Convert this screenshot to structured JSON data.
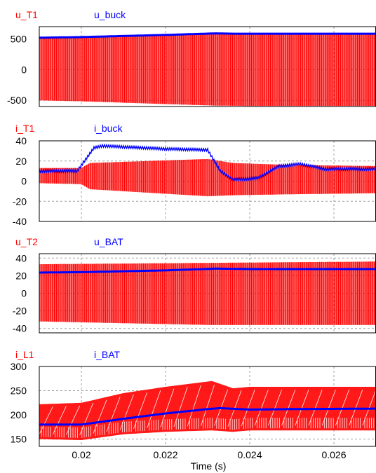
{
  "colors": {
    "red": "#ff0000",
    "blue": "#0000ff",
    "grid": "#a0a0a0"
  },
  "x_axis": {
    "label": "Time (s)",
    "range": [
      0.019,
      0.027
    ],
    "ticks": [
      0.02,
      0.022,
      0.024,
      0.026
    ],
    "tick_labels": [
      "0.02",
      "0.022",
      "0.024",
      "0.026"
    ]
  },
  "chart_data": [
    {
      "type": "line",
      "legend": [
        "u_T1",
        "u_buck"
      ],
      "ylim": [
        -600,
        700
      ],
      "yticks": [
        -500,
        0,
        500
      ],
      "ytick_labels": [
        "-500",
        "0",
        "500"
      ],
      "series": [
        {
          "name": "u_T1",
          "color": "#ff0000",
          "style": "switching",
          "upper": {
            "x": [
              0.019,
              0.02,
              0.022,
              0.0232,
              0.024,
              0.027
            ],
            "y": [
              520,
              530,
              565,
              590,
              590,
              590
            ]
          },
          "lower": {
            "x": [
              0.019,
              0.02,
              0.022,
              0.0232,
              0.024,
              0.027
            ],
            "y": [
              -500,
              -515,
              -560,
              -585,
              -590,
              -590
            ]
          }
        },
        {
          "name": "u_buck",
          "color": "#0000ff",
          "style": "line",
          "x": [
            0.019,
            0.02,
            0.022,
            0.0232,
            0.0236,
            0.027
          ],
          "y": [
            520,
            530,
            565,
            590,
            585,
            585
          ]
        }
      ]
    },
    {
      "type": "line",
      "legend": [
        "i_T1",
        "i_buck"
      ],
      "ylim": [
        -40,
        40
      ],
      "yticks": [
        -40,
        -20,
        0,
        20,
        40
      ],
      "ytick_labels": [
        "-40",
        "-20",
        "0",
        "20",
        "40"
      ],
      "series": [
        {
          "name": "i_T1",
          "color": "#ff0000",
          "style": "switching",
          "upper": {
            "x": [
              0.019,
              0.02,
              0.0202,
              0.023,
              0.0236,
              0.025,
              0.027
            ],
            "y": [
              13,
              13,
              18,
              22,
              18,
              16,
              15
            ]
          },
          "lower": {
            "x": [
              0.019,
              0.02,
              0.0202,
              0.023,
              0.0236,
              0.025,
              0.027
            ],
            "y": [
              -2,
              -3,
              -8,
              -15,
              -14,
              -13,
              -12
            ]
          }
        },
        {
          "name": "i_buck",
          "color": "#0000ff",
          "style": "ripple",
          "ripple": 2.5,
          "x": [
            0.019,
            0.0199,
            0.0203,
            0.0205,
            0.022,
            0.023,
            0.0233,
            0.0236,
            0.0242,
            0.0247,
            0.0252,
            0.0258,
            0.027
          ],
          "y": [
            10,
            10,
            33,
            35,
            32,
            31,
            10,
            1.5,
            3,
            15,
            17,
            12,
            12
          ]
        }
      ]
    },
    {
      "type": "line",
      "legend": [
        "u_T2",
        "u_BAT"
      ],
      "ylim": [
        -45,
        45
      ],
      "yticks": [
        -40,
        -20,
        0,
        20,
        40
      ],
      "ytick_labels": [
        "-40",
        "-20",
        "0",
        "20",
        "40"
      ],
      "series": [
        {
          "name": "u_T2",
          "color": "#ff0000",
          "style": "switching",
          "upper": {
            "x": [
              0.019,
              0.027
            ],
            "y": [
              33,
              36
            ]
          },
          "lower": {
            "x": [
              0.019,
              0.02,
              0.023,
              0.027
            ],
            "y": [
              -32,
              -33,
              -36,
              -36
            ]
          }
        },
        {
          "name": "u_BAT",
          "color": "#0000ff",
          "style": "line",
          "x": [
            0.019,
            0.02,
            0.022,
            0.0232,
            0.024,
            0.027
          ],
          "y": [
            23.5,
            24,
            26,
            28,
            27.5,
            27.5
          ]
        }
      ]
    },
    {
      "type": "line",
      "legend": [
        "i_L1",
        "i_BAT"
      ],
      "ylim": [
        135,
        300
      ],
      "yticks": [
        150,
        200,
        250,
        300
      ],
      "ytick_labels": [
        "150",
        "200",
        "250",
        "300"
      ],
      "series": [
        {
          "name": "i_L1",
          "color": "#ff0000",
          "style": "sawtooth",
          "period": 0.00032,
          "upper": {
            "x": [
              0.019,
              0.02,
              0.021,
              0.022,
              0.0231,
              0.0236,
              0.024,
              0.027
            ],
            "y": [
              222,
              225,
              245,
              258,
              270,
              255,
              258,
              258
            ]
          },
          "lower": {
            "x": [
              0.019,
              0.02,
              0.021,
              0.022,
              0.0231,
              0.0236,
              0.024,
              0.027
            ],
            "y": [
              150,
              148,
              160,
              165,
              168,
              165,
              168,
              168
            ]
          }
        },
        {
          "name": "i_BAT",
          "color": "#0000ff",
          "style": "line",
          "x": [
            0.019,
            0.02,
            0.021,
            0.022,
            0.023,
            0.0233,
            0.024,
            0.025,
            0.027
          ],
          "y": [
            180,
            180,
            192,
            203,
            212,
            214,
            211,
            212,
            213
          ]
        }
      ]
    }
  ]
}
